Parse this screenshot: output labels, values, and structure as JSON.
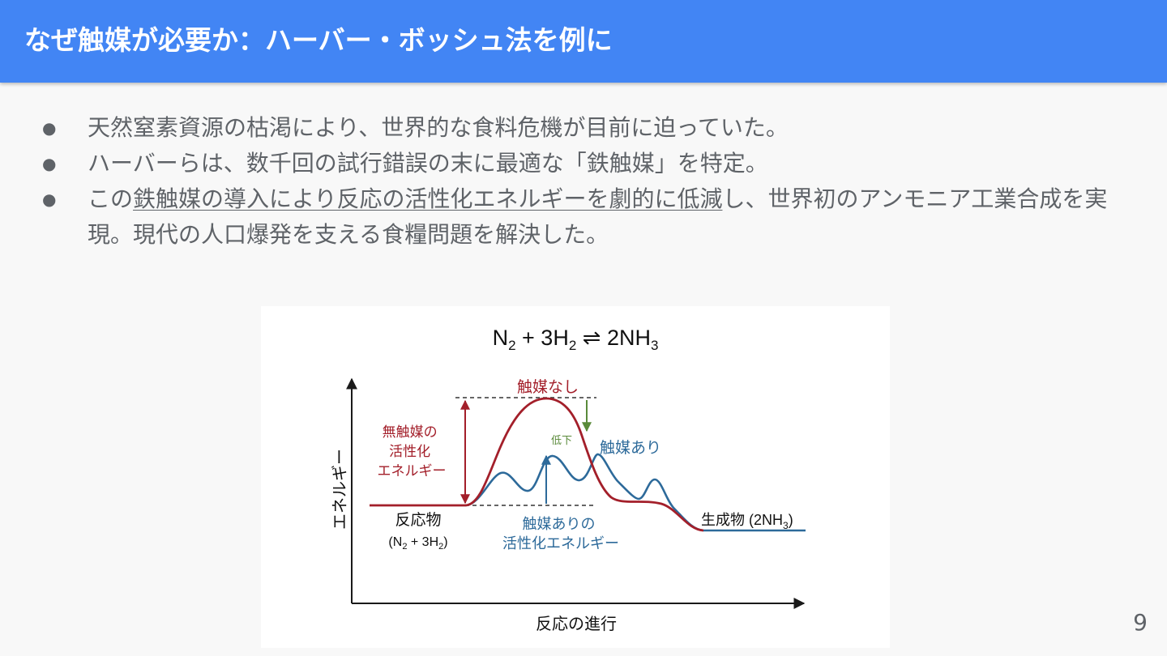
{
  "header": {
    "title": "なぜ触媒が必要か：ハーバー・ボッシュ法を例に"
  },
  "bullets": [
    {
      "text": "天然窒素資源の枯渇により、世界的な食料危機が目前に迫っていた。"
    },
    {
      "text": "ハーバーらは、数千回の試行錯誤の末に最適な「鉄触媒」を特定。"
    },
    {
      "pre": "この",
      "underlined": "鉄触媒の導入により反応の活性化エネルギーを劇的に低減",
      "post": "し、世界初のアンモニア工業合成を実現。現代の人口爆発を支える食糧問題を解決した。"
    }
  ],
  "diagram": {
    "equation": {
      "n": "N",
      "n_sub": "2",
      "h_coef": " + 3H",
      "h_sub": "2",
      "arrow": " ⇌ ",
      "nh": "2NH",
      "nh_sub": "3"
    },
    "y_axis_label": "エネルギー",
    "x_axis_label": "反応の進行",
    "uncatalyzed_label": "触媒なし",
    "catalyzed_label": "触媒あり",
    "reduction_label": "低下",
    "uncatalyzed_ea_label": [
      "無触媒の",
      "活性化",
      "エネルギー"
    ],
    "catalyzed_ea_label": [
      "触媒ありの",
      "活性化エネルギー"
    ],
    "reactants_label": "反応物",
    "reactants_formula": {
      "open": "(N",
      "sub1": "2",
      "mid": " + 3H",
      "sub2": "2",
      "close": ")"
    },
    "products_label": "生成物 (2NH",
    "products_sub": "3",
    "products_close": ")",
    "colors": {
      "uncatalyzed": "#a31f2a",
      "catalyzed": "#2d6a9a",
      "reduction_arrow": "#5a8a3a",
      "axis": "#1a1a1a"
    }
  },
  "page_number": "9"
}
